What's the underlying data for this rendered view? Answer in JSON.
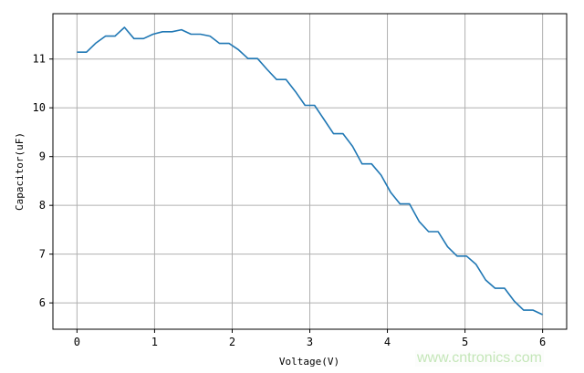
{
  "chart_data": {
    "type": "line",
    "title": "",
    "xlabel": "Voltage(V)",
    "ylabel": "Capacitor(uF)",
    "xlim": [
      -0.31,
      6.31
    ],
    "ylim": [
      5.46,
      11.93
    ],
    "xticks": [
      "0",
      "1",
      "2",
      "3",
      "4",
      "5",
      "6"
    ],
    "yticks": [
      "6",
      "7",
      "8",
      "9",
      "10",
      "11"
    ],
    "grid": true,
    "line_color": "#1f77b4",
    "x_range": [
      0,
      6
    ],
    "series": [
      {
        "values": [
          11.14,
          11.14,
          11.33,
          11.47,
          11.47,
          11.65,
          11.42,
          11.42,
          11.51,
          11.56,
          11.56,
          11.6,
          11.51,
          11.51,
          11.47,
          11.32,
          11.32,
          11.19,
          11.01,
          11.01,
          10.79,
          10.58,
          10.58,
          10.33,
          10.05,
          10.05,
          9.76,
          9.47,
          9.47,
          9.21,
          8.85,
          8.85,
          8.62,
          8.27,
          8.03,
          8.03,
          7.67,
          7.46,
          7.46,
          7.15,
          6.96,
          6.96,
          6.79,
          6.47,
          6.3,
          6.3,
          6.04,
          5.85,
          5.85,
          5.76
        ]
      }
    ]
  },
  "watermark": "www.cntronics.com"
}
